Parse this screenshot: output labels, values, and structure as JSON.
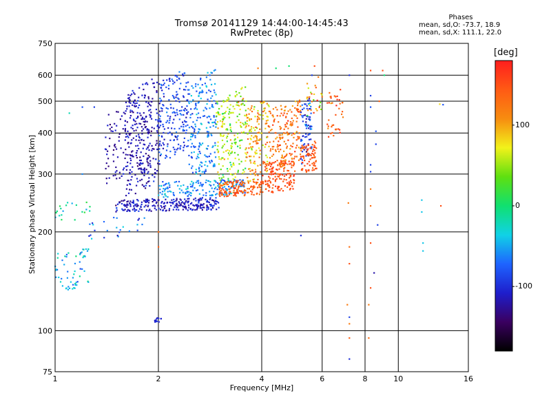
{
  "header": {
    "title_line1": "Tromsø 20141129 14:44:00-14:45:43",
    "title_line2": "RwPretec (8p)"
  },
  "phases_box": {
    "heading": "Phases",
    "line_o": "mean, sd,O: -73.7, 18.9",
    "line_x": "mean, sd,X: 111.1, 22.0"
  },
  "colorbar": {
    "unit": "[deg]",
    "ticks": [
      {
        "label": "100",
        "value": 100
      },
      {
        "label": "0",
        "value": 0
      },
      {
        "label": "-100",
        "value": -100
      }
    ],
    "range": [
      -180,
      180
    ],
    "colors": [
      "#000000",
      "#3a0060",
      "#1e1ecc",
      "#1e64ff",
      "#10d2e6",
      "#10e070",
      "#5ee010",
      "#f2f21a",
      "#f78c10",
      "#ff5a14",
      "#ff1e1e"
    ]
  },
  "chart_data": {
    "type": "scatter",
    "title": "Tromsø 20141129 14:44:00-14:45:43",
    "subtitle": "RwPretec (8p)",
    "xlabel": "Frequency [MHz]",
    "ylabel": "Stationary phase Virtual Height [km]",
    "x_scale": "log",
    "y_scale": "log",
    "xlim": [
      1,
      16
    ],
    "ylim": [
      75,
      750
    ],
    "x_ticks": [
      {
        "label": "1",
        "value": 1
      },
      {
        "label": "2",
        "value": 2
      },
      {
        "label": "4",
        "value": 4
      },
      {
        "label": "6",
        "value": 6
      },
      {
        "label": "8",
        "value": 8
      },
      {
        "label": "10",
        "value": 10
      },
      {
        "label": "16",
        "value": 16
      }
    ],
    "y_ticks": [
      {
        "label": "750",
        "value": 750
      },
      {
        "label": "600",
        "value": 600
      },
      {
        "label": "500",
        "value": 500
      },
      {
        "label": "400",
        "value": 400
      },
      {
        "label": "300",
        "value": 300
      },
      {
        "label": "200",
        "value": 200
      },
      {
        "label": "100",
        "value": 100
      },
      {
        "label": "75",
        "value": 75
      }
    ],
    "grid": true,
    "color_variable": "phase [deg]",
    "clusters": [
      {
        "x_range": [
          1.5,
          3.0
        ],
        "h_start": 230,
        "h_end": 255,
        "phase_mean": -110,
        "phase_sd": 20,
        "n": 260
      },
      {
        "x_range": [
          2.0,
          3.6
        ],
        "h_start": 255,
        "h_end": 290,
        "phase_mean": -60,
        "phase_sd": 25,
        "n": 180
      },
      {
        "x_range": [
          1.6,
          2.0
        ],
        "h_start": 250,
        "h_end": 600,
        "phase_mean": -115,
        "phase_sd": 18,
        "n": 240
      },
      {
        "x_range": [
          1.4,
          1.9
        ],
        "h_start": 280,
        "h_end": 500,
        "phase_mean": -120,
        "phase_sd": 15,
        "n": 120
      },
      {
        "x_range": [
          2.0,
          2.45
        ],
        "h_start": 320,
        "h_end": 640,
        "phase_mean": -90,
        "phase_sd": 25,
        "n": 200
      },
      {
        "x_range": [
          2.45,
          2.95
        ],
        "h_start": 280,
        "h_end": 640,
        "phase_mean": -60,
        "phase_sd": 25,
        "n": 200
      },
      {
        "x_range": [
          2.95,
          3.6
        ],
        "h_start": 270,
        "h_end": 560,
        "phase_mean": 50,
        "phase_sd": 40,
        "n": 200
      },
      {
        "x_range": [
          3.0,
          4.0
        ],
        "h_start": 255,
        "h_end": 290,
        "phase_mean": 140,
        "phase_sd": 20,
        "n": 140
      },
      {
        "x_range": [
          3.6,
          4.2
        ],
        "h_start": 280,
        "h_end": 520,
        "phase_mean": 100,
        "phase_sd": 50,
        "n": 160
      },
      {
        "x_range": [
          4.0,
          5.0
        ],
        "h_start": 260,
        "h_end": 340,
        "phase_mean": 150,
        "phase_sd": 15,
        "n": 160
      },
      {
        "x_range": [
          4.2,
          5.2
        ],
        "h_start": 300,
        "h_end": 510,
        "phase_mean": 130,
        "phase_sd": 30,
        "n": 180
      },
      {
        "x_range": [
          5.2,
          5.6
        ],
        "h_start": 320,
        "h_end": 520,
        "phase_mean": -90,
        "phase_sd": 30,
        "n": 80
      },
      {
        "x_range": [
          5.2,
          5.8
        ],
        "h_start": 300,
        "h_end": 380,
        "phase_mean": 145,
        "phase_sd": 15,
        "n": 80
      },
      {
        "x_range": [
          5.4,
          6.0
        ],
        "h_start": 450,
        "h_end": 600,
        "phase_mean": 90,
        "phase_sd": 60,
        "n": 30
      },
      {
        "x_range": [
          6.2,
          6.9
        ],
        "h_start": 380,
        "h_end": 560,
        "phase_mean": 140,
        "phase_sd": 30,
        "n": 40
      },
      {
        "x_range": [
          1.0,
          1.25
        ],
        "h_start": 130,
        "h_end": 180,
        "phase_mean": -40,
        "phase_sd": 30,
        "n": 60
      },
      {
        "x_range": [
          1.0,
          1.3
        ],
        "h_start": 210,
        "h_end": 250,
        "phase_mean": -20,
        "phase_sd": 40,
        "n": 20
      },
      {
        "x_range": [
          1.25,
          1.9
        ],
        "h_start": 190,
        "h_end": 225,
        "phase_mean": -70,
        "phase_sd": 40,
        "n": 25
      },
      {
        "x_range": [
          1.95,
          2.05
        ],
        "h_start": 106,
        "h_end": 110,
        "phase_mean": -100,
        "phase_sd": 10,
        "n": 14
      }
    ],
    "sparse_points": [
      {
        "x": 7.2,
        "y": 600,
        "phase": -100
      },
      {
        "x": 7.2,
        "y": 180,
        "phase": 130
      },
      {
        "x": 7.2,
        "y": 160,
        "phase": 150
      },
      {
        "x": 7.1,
        "y": 120,
        "phase": 120
      },
      {
        "x": 7.2,
        "y": 110,
        "phase": -90
      },
      {
        "x": 7.2,
        "y": 105,
        "phase": 120
      },
      {
        "x": 7.2,
        "y": 95,
        "phase": 140
      },
      {
        "x": 7.2,
        "y": 82,
        "phase": -100
      },
      {
        "x": 7.15,
        "y": 245,
        "phase": 120
      },
      {
        "x": 8.3,
        "y": 620,
        "phase": 150
      },
      {
        "x": 8.3,
        "y": 520,
        "phase": -90
      },
      {
        "x": 8.3,
        "y": 480,
        "phase": -80
      },
      {
        "x": 8.3,
        "y": 320,
        "phase": -90
      },
      {
        "x": 8.3,
        "y": 305,
        "phase": -90
      },
      {
        "x": 8.3,
        "y": 270,
        "phase": 120
      },
      {
        "x": 8.3,
        "y": 240,
        "phase": 130
      },
      {
        "x": 8.3,
        "y": 185,
        "phase": 150
      },
      {
        "x": 8.3,
        "y": 135,
        "phase": 150
      },
      {
        "x": 8.2,
        "y": 120,
        "phase": 120
      },
      {
        "x": 8.2,
        "y": 95,
        "phase": 130
      },
      {
        "x": 8.6,
        "y": 405,
        "phase": -80
      },
      {
        "x": 8.6,
        "y": 370,
        "phase": -90
      },
      {
        "x": 8.7,
        "y": 210,
        "phase": -90
      },
      {
        "x": 8.5,
        "y": 150,
        "phase": -120
      },
      {
        "x": 8.8,
        "y": 500,
        "phase": 140
      },
      {
        "x": 9.0,
        "y": 620,
        "phase": 150
      },
      {
        "x": 9.1,
        "y": 600,
        "phase": 0
      },
      {
        "x": 11.7,
        "y": 250,
        "phase": -40
      },
      {
        "x": 11.7,
        "y": 230,
        "phase": -40
      },
      {
        "x": 11.8,
        "y": 185,
        "phase": -40
      },
      {
        "x": 11.8,
        "y": 175,
        "phase": -40
      },
      {
        "x": 13.2,
        "y": 490,
        "phase": 80
      },
      {
        "x": 13.5,
        "y": 488,
        "phase": -80
      },
      {
        "x": 13.3,
        "y": 240,
        "phase": 150
      },
      {
        "x": 5.2,
        "y": 195,
        "phase": -100
      },
      {
        "x": 5.6,
        "y": 600,
        "phase": -90
      },
      {
        "x": 5.7,
        "y": 640,
        "phase": 150
      },
      {
        "x": 4.8,
        "y": 640,
        "phase": 0
      },
      {
        "x": 3.9,
        "y": 630,
        "phase": 120
      },
      {
        "x": 4.4,
        "y": 630,
        "phase": 0
      },
      {
        "x": 1.2,
        "y": 480,
        "phase": -80
      },
      {
        "x": 1.3,
        "y": 480,
        "phase": -90
      },
      {
        "x": 1.1,
        "y": 460,
        "phase": -20
      },
      {
        "x": 1.2,
        "y": 300,
        "phase": -60
      },
      {
        "x": 2.0,
        "y": 200,
        "phase": 130
      },
      {
        "x": 2.0,
        "y": 180,
        "phase": 140
      }
    ]
  }
}
